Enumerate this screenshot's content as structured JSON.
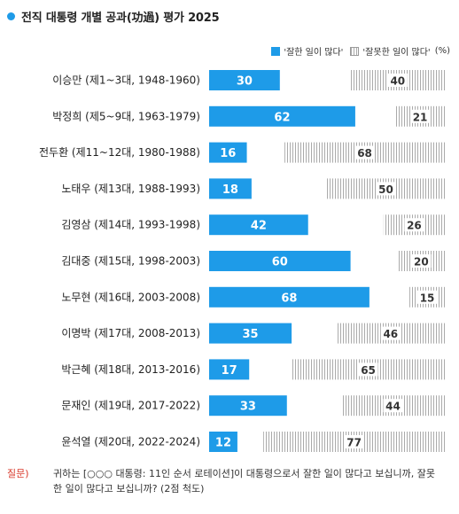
{
  "title": "전직 대통령 개별 공과(功過) 평가 2025",
  "legend": {
    "good": "'잘한 일이 많다'",
    "bad": "'잘못한 일이 많다'",
    "unit": "(%)"
  },
  "colors": {
    "good": "#1e9be8",
    "bad_stripe": "#aaaaaa",
    "bad_fill": "#ffffff",
    "dot": "#1e9be8",
    "question_label": "#d8392b"
  },
  "chart_data": {
    "type": "bar",
    "orientation": "horizontal",
    "stacked": true,
    "categories": [
      "이승만 (제1~3대, 1948-1960)",
      "박정희 (제5~9대, 1963-1979)",
      "전두환 (제11~12대, 1980-1988)",
      "노태우 (제13대, 1988-1993)",
      "김영삼 (제14대, 1993-1998)",
      "김대중 (제15대, 1998-2003)",
      "노무현 (제16대, 2003-2008)",
      "이명박 (제17대, 2008-2013)",
      "박근혜 (제18대, 2013-2016)",
      "문재인 (제19대, 2017-2022)",
      "윤석열 (제20대, 2022-2024)"
    ],
    "series": [
      {
        "name": "'잘한 일이 많다'",
        "values": [
          30,
          62,
          16,
          18,
          42,
          60,
          68,
          35,
          17,
          33,
          12
        ]
      },
      {
        "name": "'잘못한 일이 많다'",
        "values": [
          40,
          21,
          68,
          50,
          26,
          20,
          15,
          46,
          65,
          44,
          77
        ]
      }
    ],
    "xlim": [
      0,
      100
    ],
    "unit": "(%)",
    "grid": false,
    "legend_position": "top-right"
  },
  "footnote": {
    "label": "질문)",
    "text": "귀하는 [○○○ 대통령: 11인 순서 로테이션]이 대통령으로서 잘한 일이 많다고 보십니까, 잘못한 일이 많다고 보십니까? (2점 척도)"
  }
}
